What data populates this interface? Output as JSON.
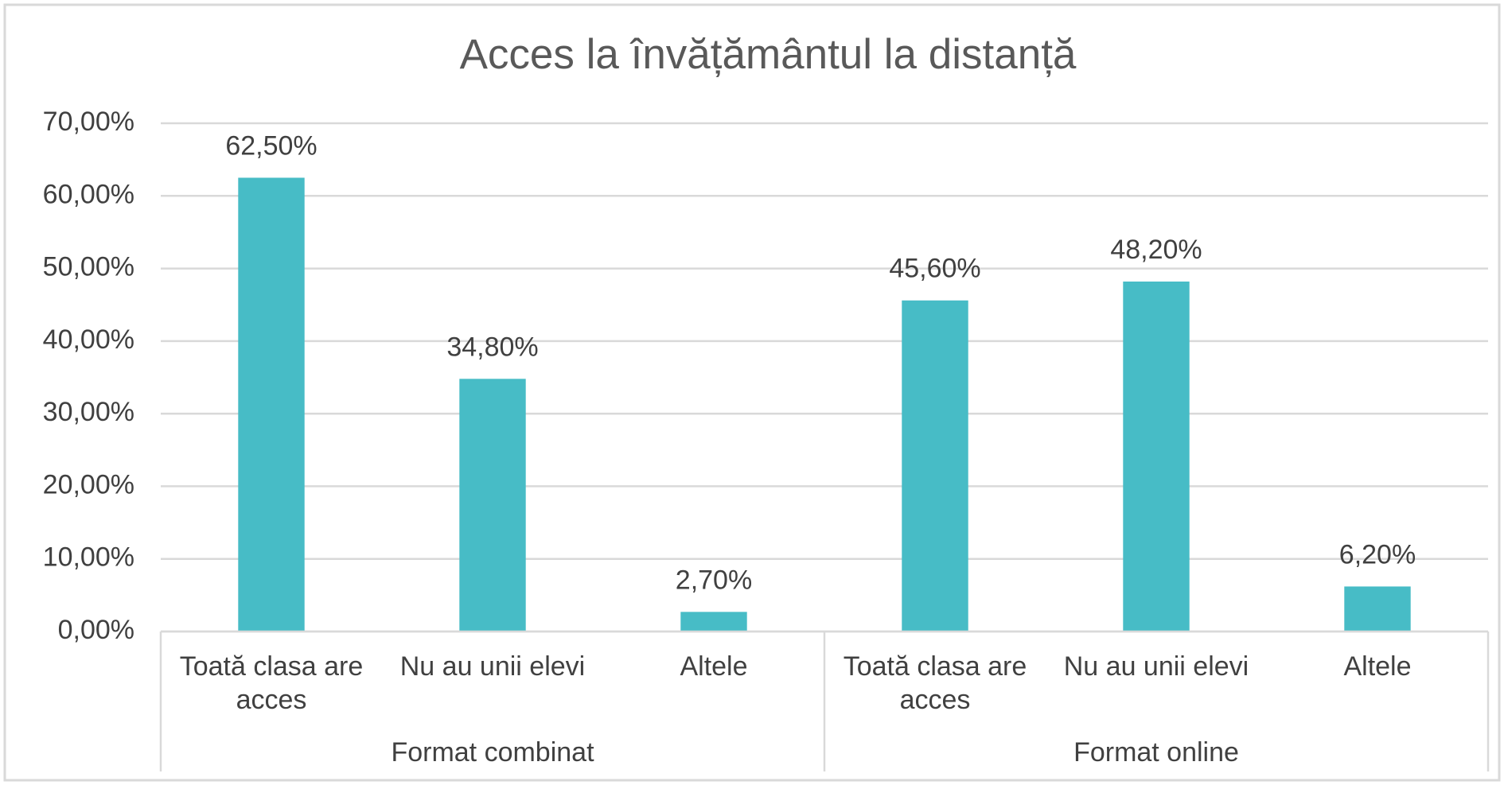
{
  "chart_data": {
    "type": "bar",
    "title": "Acces la învățământul la distanță",
    "color": "#47bcc6",
    "grid": true,
    "ylim": [
      0,
      70
    ],
    "yticks": [
      {
        "value": 0,
        "label": "0,00%"
      },
      {
        "value": 10,
        "label": "10,00%"
      },
      {
        "value": 20,
        "label": "20,00%"
      },
      {
        "value": 30,
        "label": "30,00%"
      },
      {
        "value": 40,
        "label": "40,00%"
      },
      {
        "value": 50,
        "label": "50,00%"
      },
      {
        "value": 60,
        "label": "60,00%"
      },
      {
        "value": 70,
        "label": "70,00%"
      }
    ],
    "groups": [
      {
        "name": "Format combinat",
        "categories": [
          "Toată clasa are acces",
          "Nu au unii elevi",
          "Altele"
        ],
        "values": [
          62.5,
          34.8,
          2.7
        ],
        "value_labels": [
          "62,50%",
          "34,80%",
          "2,70%"
        ]
      },
      {
        "name": "Format online",
        "categories": [
          "Toată clasa are acces",
          "Nu au unii elevi",
          "Altele"
        ],
        "values": [
          45.6,
          48.2,
          6.2
        ],
        "value_labels": [
          "45,60%",
          "48,20%",
          "6,20%"
        ]
      }
    ]
  }
}
